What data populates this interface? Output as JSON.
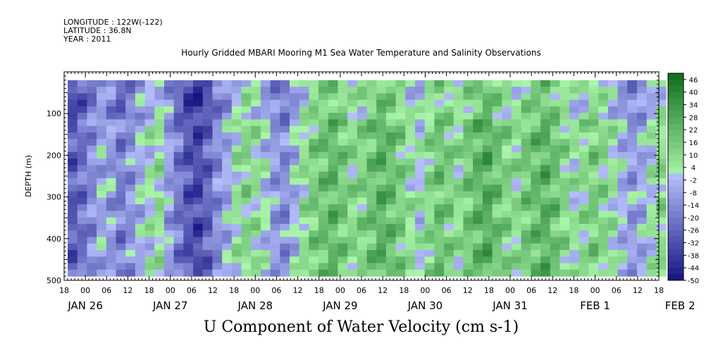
{
  "header": {
    "longitude": "LONGITUDE : 122W(-122)",
    "latitude": "LATITUDE : 36.8N",
    "year": "YEAR : 2011"
  },
  "chart_data": {
    "type": "heatmap",
    "title": "Hourly Gridded MBARI Mooring M1 Sea Water Temperature and Salinity Observations",
    "variable_label": "U Component of Water Velocity (cm s-1)",
    "ylabel": "DEPTH (m)",
    "y_axis": {
      "range": [
        0,
        500
      ],
      "inverted": true,
      "tick_labels": [
        "100",
        "200",
        "300",
        "400",
        "500"
      ],
      "tick_values": [
        100,
        200,
        300,
        400,
        500
      ]
    },
    "x_axis": {
      "range_hours": [
        0,
        168
      ],
      "hour_tick_labels": [
        "18",
        "00",
        "06",
        "12",
        "18",
        "00",
        "06",
        "12",
        "18",
        "00",
        "06",
        "12",
        "18",
        "00",
        "06",
        "12",
        "18",
        "00",
        "06",
        "12",
        "18",
        "00",
        "06",
        "12",
        "18",
        "00",
        "06",
        "12",
        "18"
      ],
      "day_labels": [
        "JAN 26",
        "JAN 27",
        "JAN 28",
        "JAN 29",
        "JAN 30",
        "JAN 31",
        "FEB  1",
        "FEB  2"
      ]
    },
    "data_extent": {
      "depth_m": [
        20,
        490
      ],
      "hours": [
        1,
        170
      ]
    },
    "colorbar": {
      "labels": [
        "46",
        "40",
        "34",
        "28",
        "22",
        "16",
        "10",
        "4",
        "-2",
        "-8",
        "-14",
        "-20",
        "-26",
        "-32",
        "-38",
        "-44",
        "-50"
      ],
      "range": [
        -50,
        49
      ]
    },
    "velocity_columns": [
      -28,
      -22,
      -14,
      -6,
      -10,
      -18,
      -12,
      -4,
      2,
      6,
      -8,
      -20,
      -30,
      -34,
      -26,
      -14,
      -6,
      4,
      10,
      6,
      -2,
      -10,
      -14,
      -4,
      6,
      14,
      18,
      22,
      16,
      10,
      12,
      18,
      24,
      20,
      14,
      6,
      2,
      10,
      18,
      14,
      8,
      16,
      22,
      26,
      18,
      12,
      8,
      16,
      20,
      24,
      18,
      10,
      4,
      8,
      14,
      10,
      4,
      -4,
      -10,
      -6,
      2,
      8
    ]
  }
}
